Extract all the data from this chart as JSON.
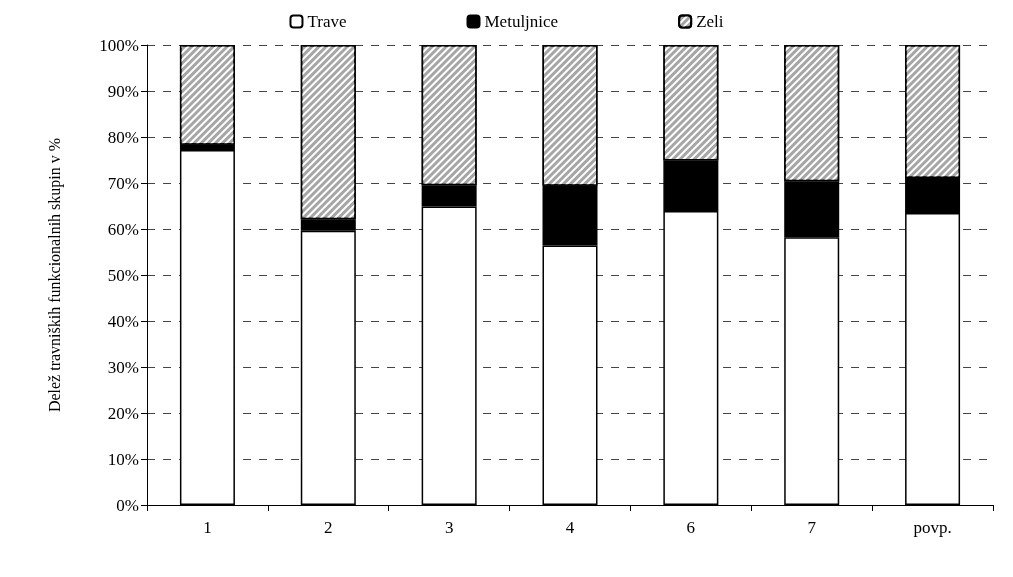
{
  "chart_data": {
    "type": "bar",
    "stacked": true,
    "ylabel": "Delež travniških funkcionalnih skupin v %",
    "categories": [
      "1",
      "2",
      "3",
      "4",
      "6",
      "7",
      "povp."
    ],
    "series": [
      {
        "name": "Trave",
        "color": "#ffffff",
        "values": [
          77.2,
          59.6,
          64.9,
          56.4,
          63.9,
          58.2,
          63.5
        ]
      },
      {
        "name": "Metuljnice",
        "color": "#000000",
        "values": [
          1.1,
          2.5,
          4.6,
          13.0,
          11.0,
          12.2,
          7.6
        ]
      },
      {
        "name": "Zeli",
        "color": "#a6a6a6",
        "values": [
          21.7,
          37.9,
          30.5,
          30.6,
          25.1,
          29.6,
          28.9
        ]
      }
    ],
    "ylim": [
      0,
      100
    ],
    "yticks": [
      {
        "value": 0,
        "label": "0%"
      },
      {
        "value": 10,
        "label": "10%"
      },
      {
        "value": 20,
        "label": "20%"
      },
      {
        "value": 30,
        "label": "30%"
      },
      {
        "value": 40,
        "label": "40%"
      },
      {
        "value": 50,
        "label": "50%"
      },
      {
        "value": 60,
        "label": "60%"
      },
      {
        "value": 70,
        "label": "70%"
      },
      {
        "value": 80,
        "label": "80%"
      },
      {
        "value": 90,
        "label": "90%"
      },
      {
        "value": 100,
        "label": "100%"
      }
    ],
    "grid": "y",
    "legend": "top"
  }
}
